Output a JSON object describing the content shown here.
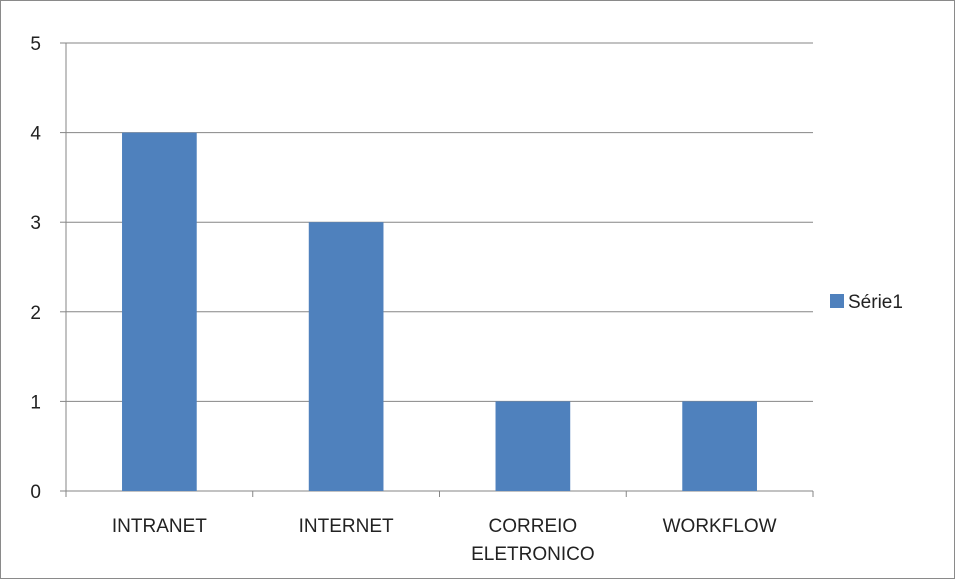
{
  "chart_data": {
    "type": "bar",
    "categories": [
      "INTRANET",
      "INTERNET",
      "CORREIO ELETRONICO",
      "WORKFLOW"
    ],
    "category_lines": [
      [
        "INTRANET"
      ],
      [
        "INTERNET"
      ],
      [
        "CORREIO",
        "ELETRONICO"
      ],
      [
        "WORKFLOW"
      ]
    ],
    "series": [
      {
        "name": "Série1",
        "values": [
          4,
          3,
          1,
          1
        ],
        "color": "#4F81BD"
      }
    ],
    "ylim": [
      0,
      5
    ],
    "yticks": [
      0,
      1,
      2,
      3,
      4,
      5
    ],
    "grid": true,
    "legend_position": "right",
    "title": "",
    "xlabel": "",
    "ylabel": ""
  }
}
